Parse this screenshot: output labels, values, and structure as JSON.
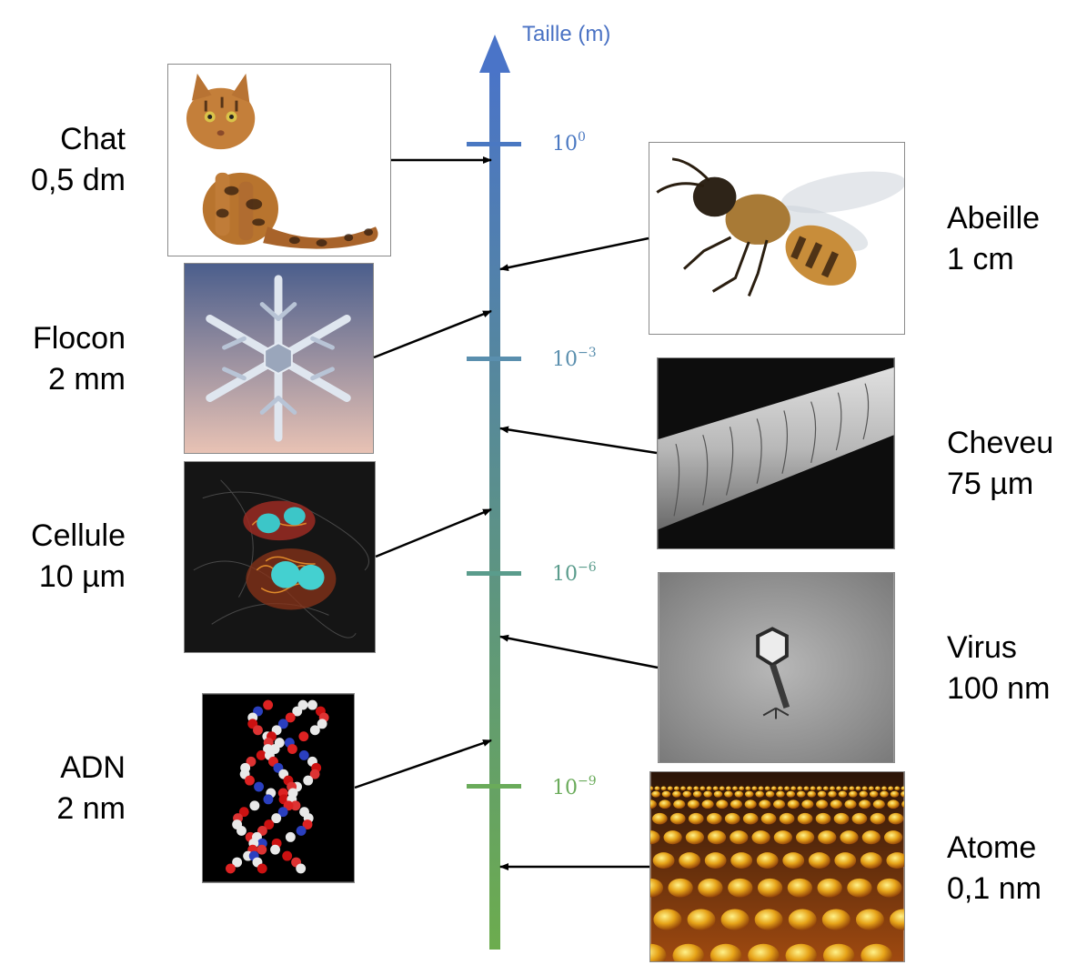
{
  "axis": {
    "title": "Taille (m)",
    "ticks": [
      {
        "base": "10",
        "exp": "0",
        "color": "#4a78c2"
      },
      {
        "base": "10",
        "exp": "−3",
        "color": "#5a8fae"
      },
      {
        "base": "10",
        "exp": "−6",
        "color": "#5a9c8c"
      },
      {
        "base": "10",
        "exp": "−9",
        "color": "#6aab5a"
      }
    ],
    "colors": {
      "top": "#4a74c8",
      "bottom": "#6cac4e"
    }
  },
  "items": [
    {
      "name": "Chat",
      "size": "0,5 dm",
      "icon": "cat-photo"
    },
    {
      "name": "Abeille",
      "size": "1 cm",
      "icon": "bee-photo"
    },
    {
      "name": "Flocon",
      "size": "2 mm",
      "icon": "snowflake-photo"
    },
    {
      "name": "Cheveu",
      "size": "75 µm",
      "icon": "hair-photo"
    },
    {
      "name": "Cellule",
      "size": "10 µm",
      "icon": "cell-photo"
    },
    {
      "name": "Virus",
      "size": "100 nm",
      "icon": "virus-photo"
    },
    {
      "name": "ADN",
      "size": "2 nm",
      "icon": "dna-photo"
    },
    {
      "name": "Atome",
      "size": "0,1 nm",
      "icon": "atom-photo"
    }
  ]
}
